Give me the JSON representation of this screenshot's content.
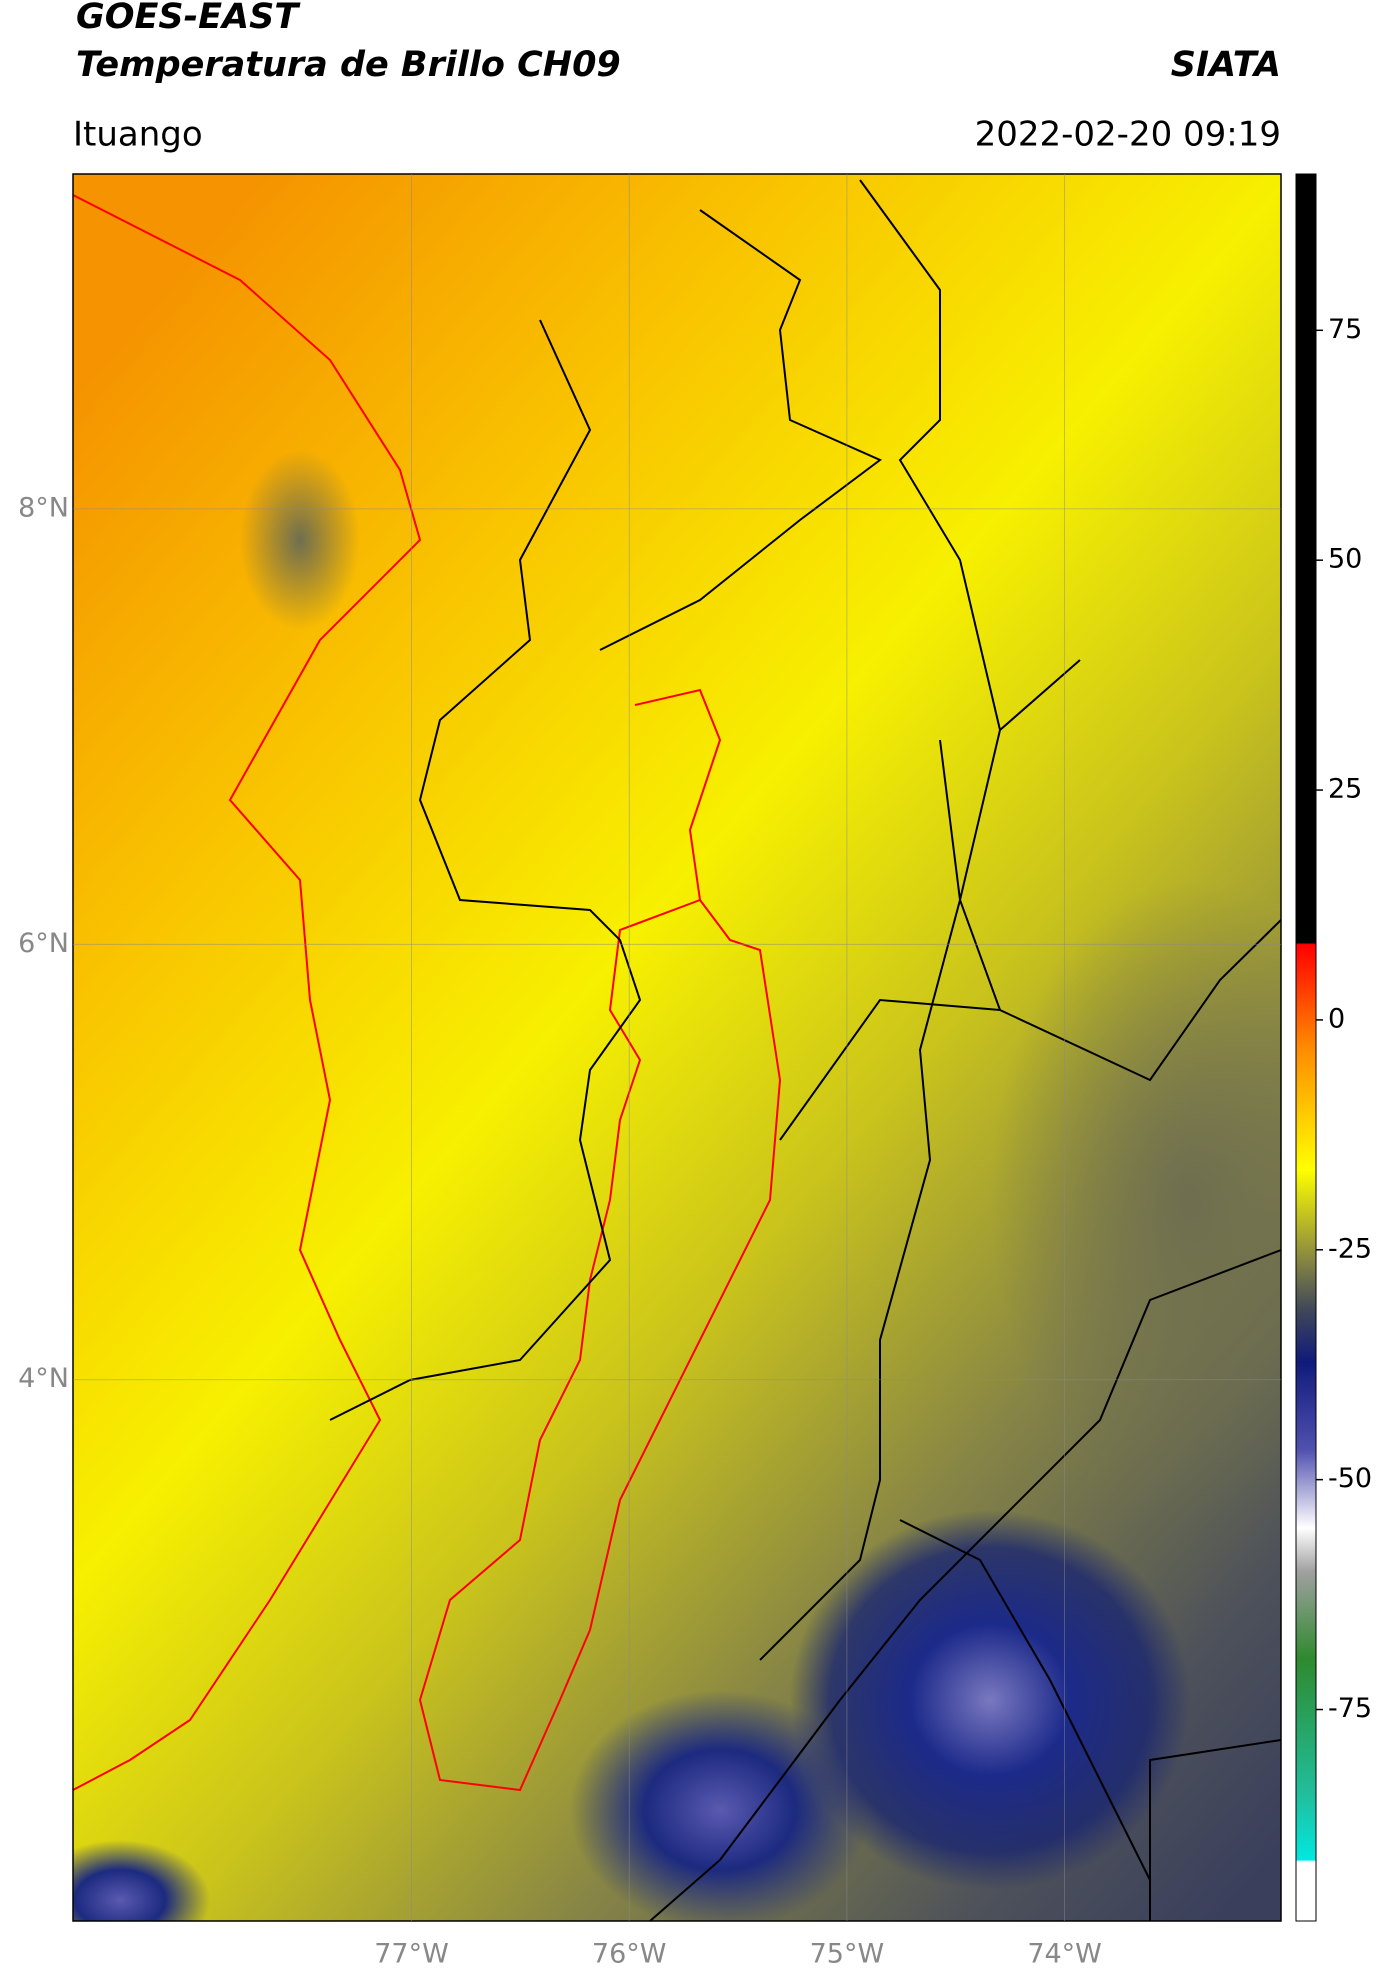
{
  "header": {
    "title": "GOES-EAST",
    "subtitle": "Temperatura de Brillo CH09",
    "source": "SIATA",
    "location": "Ituango",
    "datetime": "2022-02-20 09:19"
  },
  "map": {
    "lon_lim": [
      -78.555,
      -73.006
    ],
    "lat_lim": [
      1.514,
      9.538
    ],
    "lon_ticks": [
      {
        "value": -77,
        "label": "77°W"
      },
      {
        "value": -76,
        "label": "76°W"
      },
      {
        "value": -75,
        "label": "75°W"
      },
      {
        "value": -74,
        "label": "74°W"
      }
    ],
    "lat_ticks": [
      {
        "value": 8,
        "label": "8°N"
      },
      {
        "value": 6,
        "label": "6°N"
      },
      {
        "value": 4,
        "label": "4°N"
      }
    ]
  },
  "colorbar": {
    "lim": [
      -98,
      92
    ],
    "ticks": [
      75,
      50,
      25,
      0,
      -25,
      -50,
      -75
    ]
  }
}
